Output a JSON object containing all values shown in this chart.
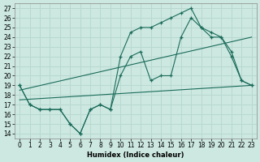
{
  "xlabel": "Humidex (Indice chaleur)",
  "bg_color": "#cce8e0",
  "grid_color": "#b8d8d0",
  "line_color": "#1a6b5a",
  "xlim": [
    -0.5,
    23.5
  ],
  "ylim": [
    13.5,
    27.5
  ],
  "x_ticks": [
    0,
    1,
    2,
    3,
    4,
    5,
    6,
    7,
    8,
    9,
    10,
    11,
    12,
    13,
    14,
    15,
    16,
    17,
    18,
    19,
    20,
    21,
    22,
    23
  ],
  "yticks": [
    14,
    15,
    16,
    17,
    18,
    19,
    20,
    21,
    22,
    23,
    24,
    25,
    26,
    27
  ],
  "wavy_x": [
    0,
    1,
    2,
    3,
    4,
    5,
    6,
    7,
    8,
    9,
    10,
    11,
    12,
    13,
    14,
    15,
    16,
    17,
    18,
    19,
    20,
    21,
    22,
    23
  ],
  "wavy_y": [
    19,
    17,
    16.5,
    16.5,
    16.5,
    15.0,
    14.0,
    16.5,
    17,
    16.5,
    22,
    24.5,
    25,
    25,
    25.5,
    26,
    26.5,
    27,
    25,
    24.5,
    24,
    22.5,
    19.5,
    19
  ],
  "peak_x": [
    0,
    1,
    2,
    3,
    4,
    5,
    6,
    7,
    8,
    9,
    10,
    11,
    12,
    13,
    14,
    15,
    16,
    17,
    18,
    19,
    20,
    21,
    22,
    23
  ],
  "peak_y": [
    19,
    17,
    16.5,
    16.5,
    16.5,
    15.0,
    14.0,
    16.5,
    17,
    16.5,
    20,
    22,
    22.5,
    19.5,
    20,
    20,
    24,
    26,
    25,
    24,
    24,
    22,
    19.5,
    19
  ],
  "line1_x": [
    0,
    23
  ],
  "line1_y": [
    17.5,
    19.0
  ],
  "line2_x": [
    0,
    23
  ],
  "line2_y": [
    18.5,
    24.0
  ]
}
